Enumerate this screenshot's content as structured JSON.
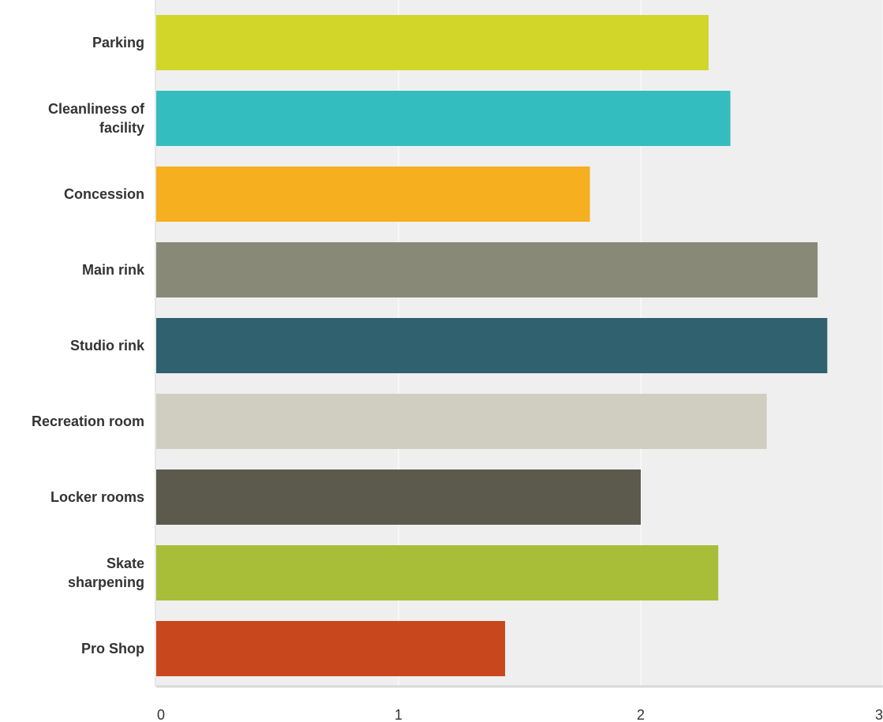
{
  "chart_data": {
    "type": "bar",
    "orientation": "horizontal",
    "title": "",
    "xlabel": "",
    "ylabel": "",
    "categories": [
      [
        "Parking"
      ],
      [
        "Cleanliness of",
        "facility"
      ],
      [
        "Concession"
      ],
      [
        "Main rink"
      ],
      [
        "Studio rink"
      ],
      [
        "Recreation room"
      ],
      [
        "Locker rooms"
      ],
      [
        "Skate",
        "sharpening"
      ],
      [
        "Pro Shop"
      ]
    ],
    "values": [
      2.28,
      2.37,
      1.79,
      2.73,
      2.77,
      2.52,
      2.0,
      2.32,
      1.44
    ],
    "colors": [
      "#D1D628",
      "#34BDBF",
      "#F6AF1E",
      "#898978",
      "#30616E",
      "#CFCEC0",
      "#5C5A4C",
      "#A8BD38",
      "#C9471C"
    ],
    "xlim": [
      0,
      3
    ],
    "xticks": [
      "0",
      "1",
      "2",
      "3"
    ],
    "grid": true,
    "legend": "none",
    "background": "#EFEFEF",
    "gridline_color": "#FFFFFF"
  }
}
